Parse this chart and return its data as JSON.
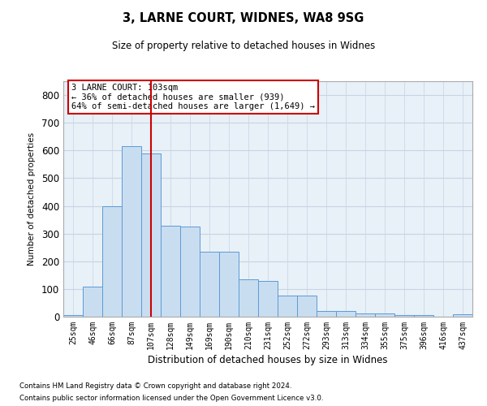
{
  "title1": "3, LARNE COURT, WIDNES, WA8 9SG",
  "title2": "Size of property relative to detached houses in Widnes",
  "xlabel": "Distribution of detached houses by size in Widnes",
  "ylabel": "Number of detached properties",
  "categories": [
    "25sqm",
    "46sqm",
    "66sqm",
    "87sqm",
    "107sqm",
    "128sqm",
    "149sqm",
    "169sqm",
    "190sqm",
    "210sqm",
    "231sqm",
    "252sqm",
    "272sqm",
    "293sqm",
    "313sqm",
    "334sqm",
    "355sqm",
    "375sqm",
    "396sqm",
    "416sqm",
    "437sqm"
  ],
  "values": [
    5,
    107,
    400,
    615,
    590,
    327,
    325,
    235,
    235,
    135,
    130,
    75,
    75,
    20,
    20,
    12,
    12,
    5,
    5,
    0,
    8
  ],
  "bar_color": "#c9ddf0",
  "bar_edge_color": "#5b9bd5",
  "vline_x": 4,
  "vline_color": "#cc0000",
  "annotation_text": "3 LARNE COURT: 103sqm\n← 36% of detached houses are smaller (939)\n64% of semi-detached houses are larger (1,649) →",
  "annotation_box_color": "#ffffff",
  "annotation_box_edge": "#cc0000",
  "ylim": [
    0,
    850
  ],
  "yticks": [
    0,
    100,
    200,
    300,
    400,
    500,
    600,
    700,
    800
  ],
  "footnote1": "Contains HM Land Registry data © Crown copyright and database right 2024.",
  "footnote2": "Contains public sector information licensed under the Open Government Licence v3.0.",
  "grid_color": "#c8d4e3",
  "bg_color": "#e8f0f8"
}
